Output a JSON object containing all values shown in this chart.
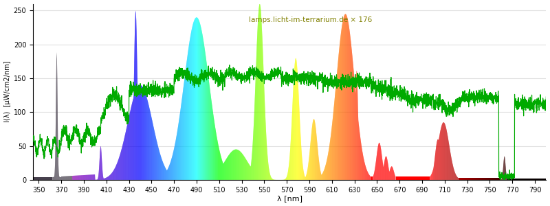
{
  "title": "lamps.licht-im-terrarium.de × 176",
  "xlabel": "λ [nm]",
  "ylabel": "I(λ)  [µW/cm2/nm]",
  "xlim": [
    345,
    800
  ],
  "ylim": [
    0,
    260
  ],
  "yticks": [
    0,
    50,
    100,
    150,
    200,
    250
  ],
  "xticks": [
    350,
    370,
    390,
    410,
    430,
    450,
    470,
    490,
    510,
    530,
    550,
    570,
    590,
    610,
    630,
    650,
    670,
    690,
    710,
    730,
    750,
    770,
    790
  ],
  "background_color": "#ffffff",
  "grid_color": "#e0e0e0",
  "annotation_color": "#808000",
  "watermark": "lamps.licht-im-terrarium.de × 176",
  "figsize": [
    8.0,
    3.0
  ],
  "dpi": 100
}
